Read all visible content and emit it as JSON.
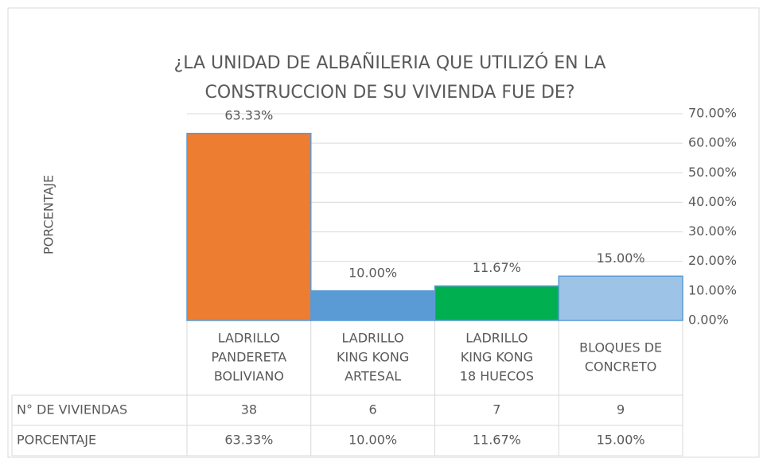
{
  "chart_data": {
    "type": "bar",
    "title": [
      "¿LA UNIDAD DE ALBAÑILERIA QUE UTILIZÓ EN  LA",
      "CONSTRUCCION DE SU VIVIENDA FUE DE?"
    ],
    "ylabel": "PORCENTAJE",
    "categories": [
      [
        "LADRILLO",
        "PANDERETA",
        "BOLIVIANO"
      ],
      [
        "LADRILLO",
        "KING KONG",
        "ARTESAL"
      ],
      [
        "LADRILLO",
        "KING KONG",
        "18 HUECOS"
      ],
      [
        "BLOQUES DE",
        "CONCRETO"
      ]
    ],
    "values": [
      63.33,
      10,
      11.67,
      15
    ],
    "value_labels": [
      "63.33%",
      "10.00%",
      "11.67%",
      "15.00%"
    ],
    "colors": [
      "#ED7D31",
      "#5B9BD5",
      "#00B050",
      "#9DC3E6"
    ],
    "edge_color": "#5B9BD5",
    "ylim": [
      0,
      70
    ],
    "yticks": [
      {
        "value": 0,
        "label": "0.00%"
      },
      {
        "value": 10,
        "label": "10.00%"
      },
      {
        "value": 20,
        "label": "20.00%"
      },
      {
        "value": 30,
        "label": "30.00%"
      },
      {
        "value": 40,
        "label": "40.00%"
      },
      {
        "value": 50,
        "label": "50.00%"
      },
      {
        "value": 60,
        "label": "60.00%"
      },
      {
        "value": 70,
        "label": "70.00%"
      }
    ],
    "y_axis_side": "right",
    "grid": true,
    "table": {
      "rows": [
        {
          "label": "N° DE VIVIENDAS",
          "values": [
            38,
            6,
            7,
            9
          ]
        },
        {
          "label": "PORCENTAJE"
        }
      ]
    }
  }
}
